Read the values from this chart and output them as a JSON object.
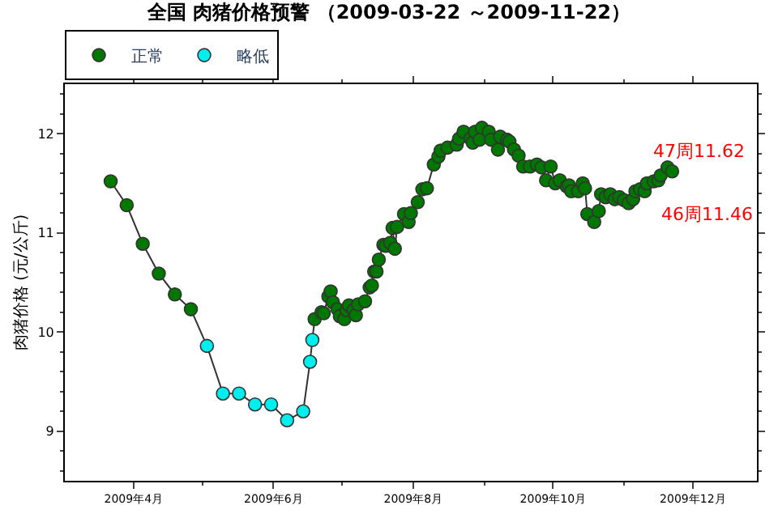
{
  "chart_data": {
    "type": "scatter",
    "title": "全国 肉猪价格预警 （2009-03-22 ～2009-11-22）",
    "ylabel": "肉猪价格 (元/公斤)",
    "x": [
      "2009-03-22",
      "2009-03-29",
      "2009-04-05",
      "2009-04-12",
      "2009-04-19",
      "2009-04-26",
      "2009-05-03",
      "2009-05-10",
      "2009-05-17",
      "2009-05-24",
      "2009-05-31",
      "2009-06-07",
      "2009-06-14",
      "2009-06-17",
      "2009-06-18",
      "2009-06-19",
      "2009-06-22",
      "2009-06-23",
      "2009-06-25",
      "2009-06-26",
      "2009-06-27",
      "2009-06-29",
      "2009-06-30",
      "2009-07-02",
      "2009-07-03",
      "2009-07-04",
      "2009-07-06",
      "2009-07-07",
      "2009-07-08",
      "2009-07-11",
      "2009-07-13",
      "2009-07-14",
      "2009-07-15",
      "2009-07-16",
      "2009-07-17",
      "2009-07-19",
      "2009-07-20",
      "2009-07-22",
      "2009-07-23",
      "2009-07-24",
      "2009-07-25",
      "2009-07-28",
      "2009-07-30",
      "2009-07-31",
      "2009-08-03",
      "2009-08-05",
      "2009-08-07",
      "2009-08-10",
      "2009-08-12",
      "2009-08-13",
      "2009-08-16",
      "2009-08-20",
      "2009-08-21",
      "2009-08-23",
      "2009-08-26",
      "2009-08-27",
      "2009-08-28",
      "2009-08-30",
      "2009-08-31",
      "2009-09-03",
      "2009-09-04",
      "2009-09-07",
      "2009-09-08",
      "2009-09-11",
      "2009-09-12",
      "2009-09-14",
      "2009-09-16",
      "2009-09-18",
      "2009-09-21",
      "2009-09-24",
      "2009-09-26",
      "2009-09-28",
      "2009-09-30",
      "2009-10-02",
      "2009-10-04",
      "2009-10-07",
      "2009-10-08",
      "2009-10-09",
      "2009-10-12",
      "2009-10-14",
      "2009-10-15",
      "2009-10-16",
      "2009-10-19",
      "2009-10-21",
      "2009-10-22",
      "2009-10-24",
      "2009-10-26",
      "2009-10-28",
      "2009-10-30",
      "2009-11-01",
      "2009-11-03",
      "2009-11-05",
      "2009-11-06",
      "2009-11-08",
      "2009-11-10",
      "2009-11-11",
      "2009-11-14",
      "2009-11-16",
      "2009-11-17",
      "2009-11-20",
      "2009-11-22"
    ],
    "series": [
      {
        "type": "line",
        "color": "#333333",
        "marker": "none",
        "values": [
          11.52,
          11.28,
          10.89,
          10.59,
          10.38,
          10.23,
          9.86,
          9.38,
          9.38,
          9.27,
          9.27,
          9.11,
          9.2,
          9.7,
          9.92,
          10.13,
          10.2,
          10.19,
          10.36,
          10.41,
          10.3,
          10.23,
          10.16,
          10.13,
          10.22,
          10.27,
          10.22,
          10.17,
          10.28,
          10.31,
          10.45,
          10.47,
          10.61,
          10.61,
          10.73,
          10.88,
          10.87,
          10.9,
          11.05,
          10.84,
          11.06,
          11.19,
          11.11,
          11.2,
          11.31,
          11.44,
          11.45,
          11.69,
          11.77,
          11.83,
          11.86,
          11.89,
          11.95,
          12.02,
          11.95,
          11.91,
          12.02,
          11.94,
          12.06,
          12.02,
          11.94,
          11.84,
          11.97,
          11.94,
          11.92,
          11.84,
          11.78,
          11.67,
          11.67,
          11.69,
          11.66,
          11.53,
          11.67,
          11.5,
          11.53,
          11.47,
          11.48,
          11.42,
          11.42,
          11.5,
          11.45,
          11.19,
          11.11,
          11.22,
          11.39,
          11.36,
          11.39,
          11.34,
          11.36,
          11.33,
          11.3,
          11.34,
          11.42,
          11.44,
          11.42,
          11.5,
          11.52,
          11.53,
          11.58,
          11.66,
          11.62
        ]
      },
      {
        "name": "正常",
        "color": "#007700",
        "values": [
          11.52,
          11.28,
          10.89,
          10.59,
          10.38,
          10.23,
          null,
          null,
          null,
          null,
          null,
          null,
          null,
          null,
          null,
          10.13,
          10.2,
          10.19,
          10.36,
          10.41,
          10.3,
          10.23,
          10.16,
          10.13,
          10.22,
          10.27,
          10.22,
          10.17,
          10.28,
          10.31,
          10.45,
          10.47,
          10.61,
          10.61,
          10.73,
          10.88,
          10.87,
          10.9,
          11.05,
          10.84,
          11.06,
          11.19,
          11.11,
          11.2,
          11.31,
          11.44,
          11.45,
          11.69,
          11.77,
          11.83,
          11.86,
          11.89,
          11.95,
          12.02,
          11.95,
          11.91,
          12.02,
          11.94,
          12.06,
          12.02,
          11.94,
          11.84,
          11.97,
          11.94,
          11.92,
          11.84,
          11.78,
          11.67,
          11.67,
          11.69,
          11.66,
          11.53,
          11.67,
          11.5,
          11.53,
          11.47,
          11.48,
          11.42,
          11.42,
          11.5,
          11.45,
          11.19,
          11.11,
          11.22,
          11.39,
          11.36,
          11.39,
          11.34,
          11.36,
          11.33,
          11.3,
          11.34,
          11.42,
          11.44,
          11.42,
          11.5,
          11.52,
          11.53,
          11.58,
          11.66,
          11.62
        ]
      },
      {
        "name": "略低",
        "color": "#00eeee",
        "values": [
          null,
          null,
          null,
          null,
          null,
          null,
          9.86,
          9.38,
          9.38,
          9.27,
          9.27,
          9.11,
          9.2,
          9.7,
          9.92,
          null,
          null,
          null,
          null,
          null,
          null,
          null,
          null,
          null,
          null,
          null,
          null,
          null,
          null,
          null,
          null,
          null,
          null,
          null,
          null,
          null,
          null,
          null,
          null,
          null,
          null,
          null,
          null,
          null,
          null,
          null,
          null,
          null,
          null,
          null,
          null,
          null,
          null,
          null,
          null,
          null,
          null,
          null,
          null,
          null,
          null,
          null,
          null,
          null,
          null,
          null,
          null,
          null,
          null,
          null,
          null,
          null,
          null,
          null,
          null,
          null,
          null,
          null,
          null,
          null,
          null,
          null,
          null,
          null,
          null,
          null,
          null,
          null,
          null,
          null,
          null,
          null,
          null,
          null,
          null,
          null,
          null,
          null,
          null,
          null,
          null
        ]
      }
    ],
    "marker": "circle",
    "xlim": [
      "2009-03-02",
      "2009-12-29"
    ],
    "xticks": [
      {
        "value": "2009-04-01",
        "label": "2009年4月"
      },
      {
        "value": "2009-06-01",
        "label": "2009年6月"
      },
      {
        "value": "2009-08-01",
        "label": "2009年8月"
      },
      {
        "value": "2009-10-01",
        "label": "2009年10月"
      },
      {
        "value": "2009-12-01",
        "label": "2009年12月"
      }
    ],
    "ylim": [
      8.5,
      12.5
    ],
    "yticks": [
      9,
      10,
      11,
      12
    ],
    "legend": "top left",
    "annotations": [
      {
        "text": "47周11.62",
        "x": "2009-11-22",
        "y": 11.62
      },
      "46周11.46"
    ]
  }
}
